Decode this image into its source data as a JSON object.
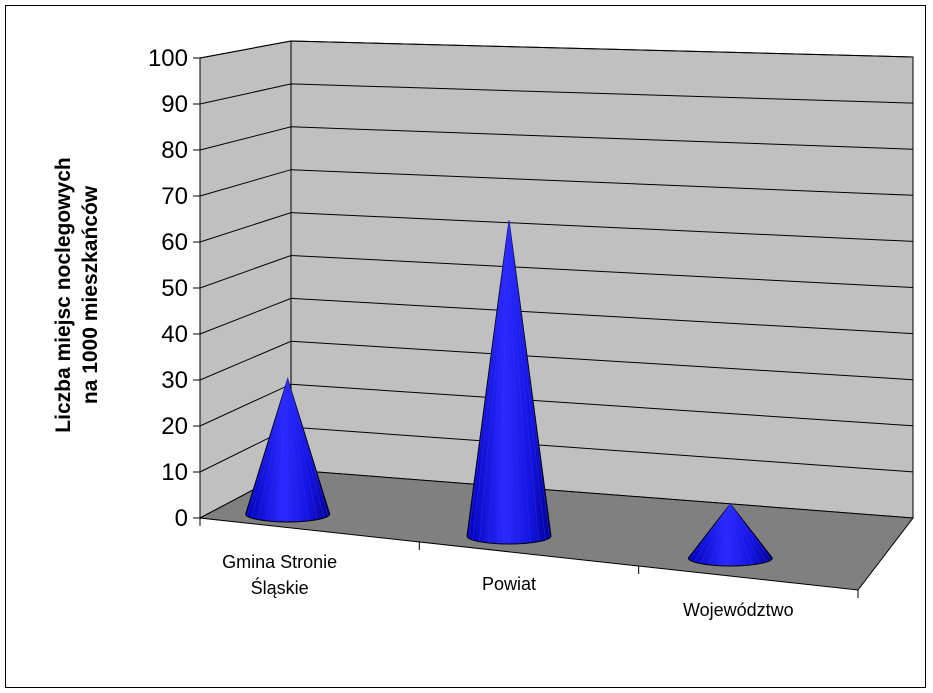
{
  "chart_data": {
    "type": "bar",
    "bar_shape": "cone",
    "categories": [
      [
        "Gmina Stronie",
        "Śląskie"
      ],
      [
        "Powiat"
      ],
      [
        "Województwo"
      ]
    ],
    "values": [
      30,
      70,
      12
    ],
    "ylabel": [
      "Liczba miejsc noclegowych",
      "na 1000 mieszkańców"
    ],
    "ylim": [
      0,
      100
    ],
    "yticks": [
      0,
      10,
      20,
      30,
      40,
      50,
      60,
      70,
      80,
      90,
      100
    ],
    "grid": true,
    "colors": {
      "bar": "#1a1af0",
      "bar_dark": "#0000a0",
      "bar_light": "#4a4aff",
      "back_wall": "#c0c0c0",
      "side_wall": "#c0c0c0",
      "floor": "#808080"
    }
  }
}
